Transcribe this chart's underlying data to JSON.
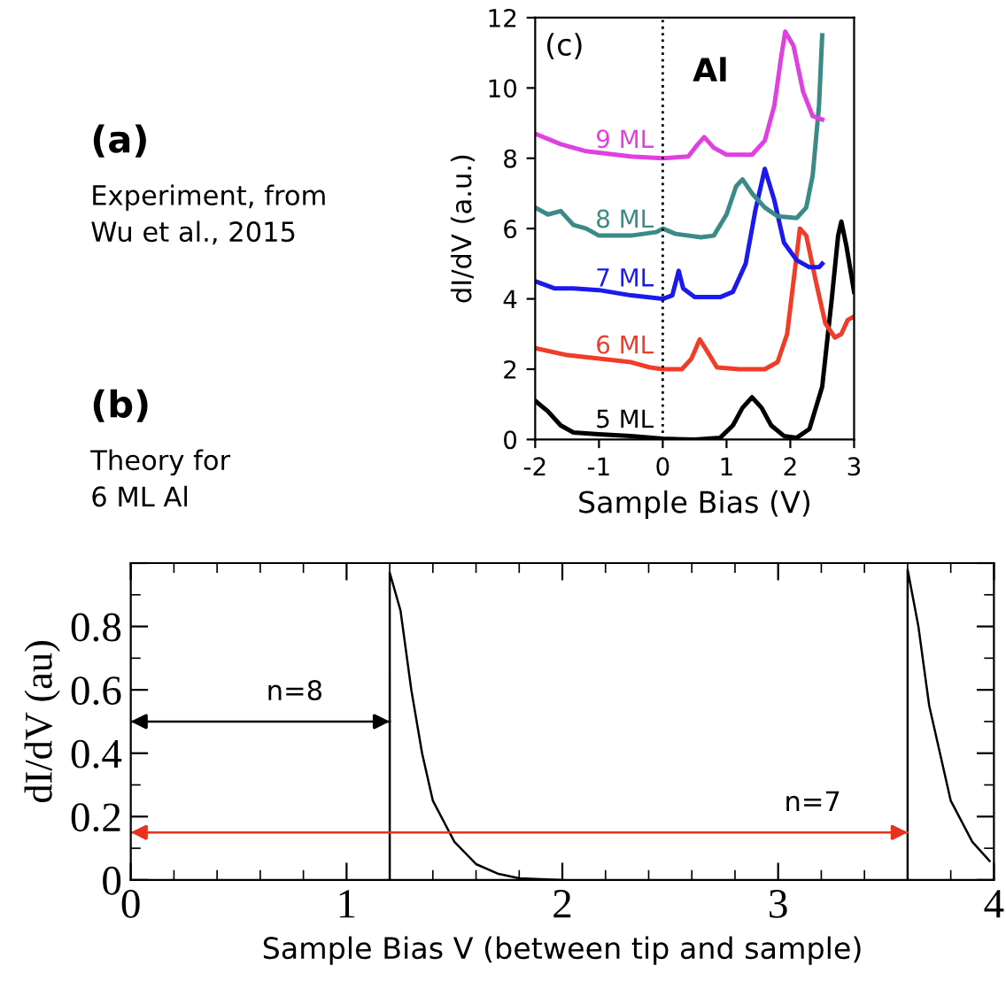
{
  "chart_data": [
    {
      "type": "line",
      "xlabel": "Sample Bias (V)",
      "ylabel": "dI/dV (a.u.)",
      "xlim": [
        -2,
        3
      ],
      "ylim": [
        0,
        12
      ],
      "xticks": [
        -2,
        -1,
        0,
        1,
        2,
        3
      ],
      "yticks": [
        0,
        2,
        4,
        6,
        8,
        10,
        12
      ],
      "grid": false,
      "legend": false,
      "annotations": [
        "(c)",
        "Al",
        "(a)",
        "Experiment, from\nWu et al., 2015"
      ],
      "ref_lines": [
        {
          "axis": "x",
          "value": 0,
          "color": "#000000",
          "line_style": "dotted"
        }
      ],
      "series": [
        {
          "name": "5 ML",
          "color": "#000000",
          "x": [
            -2,
            -1.8,
            -1.6,
            -1.4,
            -1,
            -0.5,
            0,
            0.5,
            0.9,
            1.1,
            1.25,
            1.4,
            1.55,
            1.7,
            1.9,
            2.1,
            2.3,
            2.5,
            2.65,
            2.75,
            2.8,
            2.88,
            3.0
          ],
          "values": [
            1.1,
            0.8,
            0.4,
            0.2,
            0.15,
            0.1,
            0.02,
            0,
            0.05,
            0.4,
            0.9,
            1.2,
            0.9,
            0.4,
            0.1,
            0.05,
            0.3,
            1.5,
            4,
            5.8,
            6.2,
            5.5,
            4.2
          ]
        },
        {
          "name": "6 ML",
          "color": "#f03c28",
          "x": [
            -2,
            -1.5,
            -1,
            -0.5,
            -0.2,
            0,
            0.3,
            0.45,
            0.58,
            0.7,
            0.85,
            1.2,
            1.6,
            1.8,
            1.95,
            2.05,
            2.15,
            2.25,
            2.4,
            2.55,
            2.7,
            2.8,
            2.9,
            3.0
          ],
          "values": [
            2.6,
            2.4,
            2.3,
            2.2,
            2.05,
            2.0,
            2.0,
            2.3,
            2.85,
            2.5,
            2.05,
            2.0,
            2.0,
            2.2,
            3,
            4.5,
            6.0,
            5.8,
            4.5,
            3.3,
            2.9,
            3.0,
            3.4,
            3.5
          ]
        },
        {
          "name": "7 ML",
          "color": "#1a1aee",
          "x": [
            -2,
            -1.7,
            -1.4,
            -1,
            -0.5,
            0,
            0.15,
            0.25,
            0.32,
            0.5,
            0.9,
            1.1,
            1.3,
            1.45,
            1.6,
            1.75,
            1.9,
            2.1,
            2.3,
            2.45,
            2.5
          ],
          "values": [
            4.5,
            4.3,
            4.3,
            4.25,
            4.1,
            4.0,
            4.1,
            4.8,
            4.3,
            4.05,
            4.05,
            4.2,
            5.0,
            6.5,
            7.7,
            6.8,
            5.6,
            5.1,
            4.9,
            4.9,
            5.0
          ]
        },
        {
          "name": "8 ML",
          "color": "#3a8a86",
          "x": [
            -2,
            -1.8,
            -1.6,
            -1.4,
            -1.2,
            -1,
            -0.5,
            -0.1,
            0,
            0.2,
            0.6,
            0.8,
            1.0,
            1.15,
            1.25,
            1.4,
            1.6,
            1.8,
            2.1,
            2.25,
            2.35,
            2.45,
            2.5
          ],
          "values": [
            6.6,
            6.4,
            6.5,
            6.1,
            6.0,
            5.8,
            5.8,
            5.9,
            6.0,
            5.85,
            5.75,
            5.8,
            6.4,
            7.2,
            7.4,
            7.0,
            6.6,
            6.35,
            6.3,
            6.6,
            7.5,
            9.5,
            11.5
          ]
        },
        {
          "name": "9 ML",
          "color": "#e040e0",
          "x": [
            -2,
            -1.6,
            -1.2,
            -0.5,
            0,
            0.4,
            0.55,
            0.65,
            0.8,
            1.0,
            1.4,
            1.6,
            1.75,
            1.85,
            1.92,
            2.05,
            2.2,
            2.35,
            2.5
          ],
          "values": [
            8.7,
            8.4,
            8.2,
            8.05,
            8.0,
            8.05,
            8.4,
            8.6,
            8.3,
            8.1,
            8.1,
            8.5,
            9.5,
            10.8,
            11.6,
            11.2,
            9.9,
            9.2,
            9.1
          ]
        }
      ]
    },
    {
      "type": "line",
      "xlabel": "Sample Bias V (between tip and sample)",
      "ylabel": "dI/dV (au)",
      "xlim": [
        0,
        4
      ],
      "ylim": [
        0,
        1
      ],
      "xticks": [
        0,
        1,
        2,
        3,
        4
      ],
      "yticks": [
        0,
        {
          "value": 0.2,
          "label": "0.2"
        },
        {
          "value": 0.4,
          "label": "0.4"
        },
        {
          "value": 0.6,
          "label": "0.6"
        },
        {
          "value": 0.8,
          "label": "0.8"
        },
        {
          "value": 1,
          "label": null
        }
      ],
      "grid": false,
      "legend": false,
      "annotations": [
        "(b)",
        "Theory for\n6 ML Al"
      ],
      "series": [
        {
          "color": "#000000",
          "x": [
            1.2,
            1.2,
            1.25,
            1.3,
            1.35,
            1.4,
            1.5,
            1.6,
            1.7,
            1.8,
            2.0,
            null,
            3.6,
            3.6,
            3.65,
            3.7,
            3.75,
            3.8,
            3.9,
            3.98
          ],
          "values": [
            0,
            0.97,
            0.85,
            0.6,
            0.4,
            0.25,
            0.12,
            0.05,
            0.02,
            0.005,
            0,
            null,
            0,
            0.98,
            0.8,
            0.55,
            0.4,
            0.25,
            0.12,
            0.06
          ]
        },
        {
          "name": "n=8",
          "color": "#000000",
          "x": [
            0,
            1.2
          ],
          "values": [
            0.5,
            0.5
          ]
        },
        {
          "name": "n=7",
          "color": "#e8321e",
          "x": [
            0,
            3.6
          ],
          "values": [
            0.15,
            0.15
          ]
        }
      ]
    }
  ]
}
